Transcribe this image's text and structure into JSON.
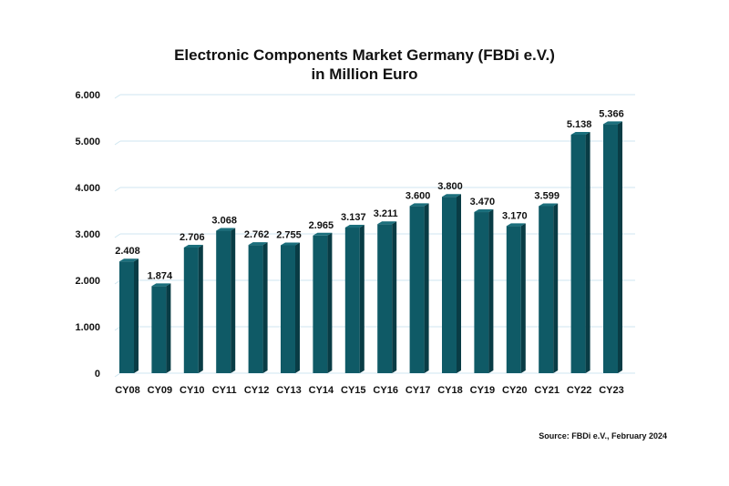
{
  "chart_data": {
    "type": "bar",
    "title_line1": "Electronic Components Market Germany (FBDi e.V.)",
    "title_line2": "in Million Euro",
    "categories": [
      "CY08",
      "CY09",
      "CY10",
      "CY11",
      "CY12",
      "CY13",
      "CY14",
      "CY15",
      "CY16",
      "CY17",
      "CY18",
      "CY19",
      "CY20",
      "CY21",
      "CY22",
      "CY23"
    ],
    "values": [
      2408,
      1874,
      2706,
      3068,
      2762,
      2755,
      2965,
      3137,
      3211,
      3600,
      3800,
      3470,
      3170,
      3599,
      5138,
      5366
    ],
    "value_labels": [
      "2.408",
      "1.874",
      "2.706",
      "3.068",
      "2.762",
      "2.755",
      "2.965",
      "3.137",
      "3.211",
      "3.600",
      "3.800",
      "3.470",
      "3.170",
      "3.599",
      "5.138",
      "5.366"
    ],
    "yticks": [
      0,
      1000,
      2000,
      3000,
      4000,
      5000,
      6000
    ],
    "ytick_labels": [
      "0",
      "1.000",
      "2.000",
      "3.000",
      "4.000",
      "5.000",
      "6.000"
    ],
    "ylim": [
      0,
      6000
    ],
    "grid": true,
    "xlabel": "",
    "ylabel": "",
    "source": "Source: FBDi e.V., February 2024",
    "colors": {
      "bar_front": "#0f5a66",
      "bar_side": "#093c45",
      "bar_top": "#1b6f7c",
      "grid": "#cfe6f0"
    }
  }
}
